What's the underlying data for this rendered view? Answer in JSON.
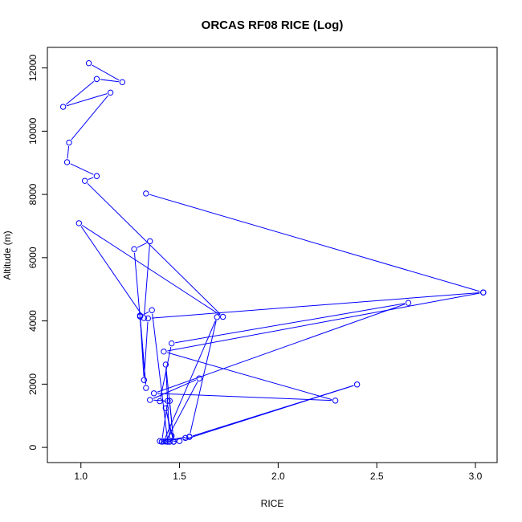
{
  "chart_data": {
    "type": "line",
    "title": "ORCAS RF08 RICE (Log)",
    "xlabel": "RICE",
    "ylabel": "Altitude (m)",
    "xlim": [
      0.83,
      3.11
    ],
    "ylim": [
      -480,
      12650
    ],
    "x_ticks": [
      1.0,
      1.5,
      2.0,
      2.5,
      3.0
    ],
    "x_tick_labels": [
      "1.0",
      "1.5",
      "2.0",
      "2.5",
      "3.0"
    ],
    "y_ticks": [
      0,
      2000,
      4000,
      6000,
      8000,
      10000,
      12000
    ],
    "y_tick_labels": [
      "0",
      "2000",
      "4000",
      "6000",
      "8000",
      "10000",
      "12000"
    ],
    "grid": false,
    "legend": "none",
    "series_color": "#0000ff",
    "markers": "open-circle",
    "series": [
      {
        "x": [
          1.04,
          1.21,
          1.08,
          0.91,
          1.15,
          0.94,
          0.93,
          1.08,
          1.02,
          1.72,
          0.99,
          1.32,
          1.35,
          1.27,
          1.33,
          1.3,
          1.32,
          1.34,
          3.04,
          1.42,
          2.29,
          1.37,
          2.66,
          1.46,
          1.4,
          1.45,
          1.47,
          1.43,
          1.46,
          1.41,
          1.44,
          1.35,
          1.6,
          1.43,
          1.53,
          1.55,
          2.4,
          1.5,
          1.45,
          1.43,
          1.47,
          1.42,
          1.69,
          1.55,
          1.4,
          1.43,
          1.44,
          1.36,
          1.3
        ],
        "y": [
          12150,
          11550,
          11650,
          10770,
          11220,
          9640,
          9020,
          8580,
          8430,
          4130,
          7090,
          4090,
          6520,
          6270,
          1880,
          4170,
          2130,
          4080,
          4900,
          3030,
          1480,
          1710,
          4570,
          3290,
          1460,
          1470,
          180,
          1240,
          360,
          180,
          1470,
          1500,
          2180,
          190,
          300,
          330,
          1990,
          200,
          180,
          2620,
          180,
          190,
          4120,
          340,
          200,
          190,
          180,
          4340,
          4140
        ]
      },
      {
        "x": [
          1.33,
          3.04
        ],
        "y": [
          8030,
          4900
        ]
      }
    ]
  }
}
